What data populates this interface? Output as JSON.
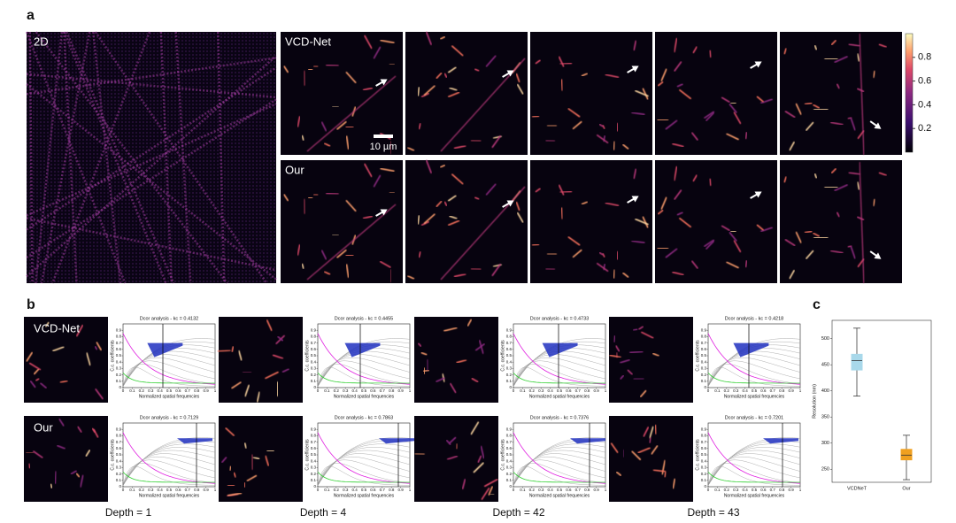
{
  "panel_a": {
    "label": "a",
    "image_2d_label": "2D",
    "row_labels": [
      "VCD-Net",
      "Our"
    ],
    "scale_bar": "10 µm",
    "colorbar": {
      "lim": [
        0,
        1
      ],
      "ticks": [
        0.2,
        0.4,
        0.6,
        0.8
      ]
    }
  },
  "panel_b": {
    "label": "b",
    "row_labels": [
      "VCD-Net",
      "Our"
    ],
    "axes": {
      "xlabel": "Normalized spatial frequencies",
      "ylabel": "C.c. coefficients",
      "xticks": [
        0,
        0.1,
        0.2,
        0.3,
        0.4,
        0.5,
        0.6,
        0.7,
        0.8,
        0.9,
        1
      ],
      "yticks": [
        0,
        0.1,
        0.2,
        0.3,
        0.4,
        0.5,
        0.6,
        0.7,
        0.8,
        0.9
      ],
      "xlim": [
        0,
        1
      ],
      "ylim": [
        0,
        1
      ]
    },
    "depths": [
      {
        "label": "Depth = 1",
        "titles": [
          "Dcor analysis - kc = 0.4132",
          "Dcor analysis - kc = 0.7129"
        ]
      },
      {
        "label": "Depth = 4",
        "titles": [
          "Dcor analysis - kc = 0.4455",
          "Dcor analysis - kc = 0.7863"
        ]
      },
      {
        "label": "Depth = 42",
        "titles": [
          "Dcor analysis - kc = 0.4733",
          "Dcor analysis - kc = 0.7376"
        ]
      },
      {
        "label": "Depth = 43",
        "titles": [
          "Dcor analysis - kc = 0.4218",
          "Dcor analysis - kc = 0.7201"
        ]
      }
    ]
  },
  "chart_data": {
    "type": "box",
    "panel_label": "c",
    "ylabel": "Resolution (nm)",
    "ylim": [
      225,
      535
    ],
    "yticks": [
      250,
      300,
      350,
      400,
      450,
      500
    ],
    "series": [
      {
        "name": "VCDNeT",
        "color": "#a8d8ea",
        "whisker_low": 390,
        "q1": 440,
        "median": 458,
        "q3": 470,
        "whisker_high": 520
      },
      {
        "name": "Our",
        "color": "#f0a020",
        "whisker_low": 230,
        "q1": 268,
        "median": 277,
        "q3": 288,
        "whisker_high": 315
      }
    ]
  }
}
